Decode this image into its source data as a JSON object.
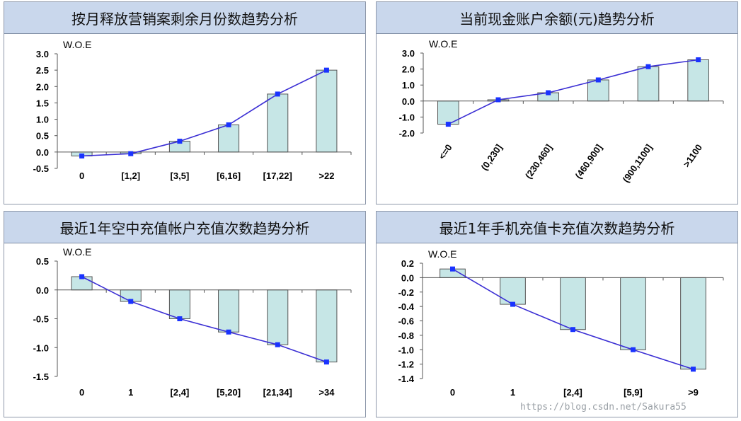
{
  "chart_data": [
    {
      "type": "bar",
      "title": "按月释放营销案剩余月份数趋势分析",
      "ylabel": "W.O.E",
      "categories": [
        "0",
        "[1,2]",
        "[3,5]",
        "[6,16]",
        "[17,22]",
        ">22"
      ],
      "values": [
        -0.12,
        -0.05,
        0.33,
        0.83,
        1.77,
        2.5
      ],
      "ylim": [
        -0.5,
        3.0
      ],
      "yticks": [
        "3.0",
        "2.5",
        "2.0",
        "1.5",
        "1.0",
        "0.5",
        "0.0",
        "-0.5"
      ],
      "ytick_values": [
        3.0,
        2.5,
        2.0,
        1.5,
        1.0,
        0.5,
        0.0,
        -0.5
      ],
      "rotated_labels": false
    },
    {
      "type": "bar",
      "title": "当前现金账户余额(元)趋势分析",
      "ylabel": "W.O.E",
      "categories": [
        "<=0",
        "(0,230]",
        "(230,460]",
        "(460,900]",
        "(900,1100]",
        ">1100"
      ],
      "values": [
        -1.45,
        0.08,
        0.52,
        1.32,
        2.15,
        2.58
      ],
      "ylim": [
        -2.0,
        3.0
      ],
      "yticks": [
        "3.0",
        "2.0",
        "1.0",
        "0.0",
        "-1.0",
        "-2.0"
      ],
      "ytick_values": [
        3.0,
        2.0,
        1.0,
        0.0,
        -1.0,
        -2.0
      ],
      "rotated_labels": true
    },
    {
      "type": "bar",
      "title": "最近1年空中充值帐户充值次数趋势分析",
      "ylabel": "W.O.E",
      "categories": [
        "0",
        "1",
        "[2,4]",
        "[5,20]",
        "[21,34]",
        ">34"
      ],
      "values": [
        0.23,
        -0.2,
        -0.5,
        -0.73,
        -0.95,
        -1.25
      ],
      "ylim": [
        -1.5,
        0.5
      ],
      "yticks": [
        "0.5",
        "0.0",
        "-0.5",
        "-1.0",
        "-1.5"
      ],
      "ytick_values": [
        0.5,
        0.0,
        -0.5,
        -1.0,
        -1.5
      ],
      "rotated_labels": false
    },
    {
      "type": "bar",
      "title": "最近1年手机充值卡充值次数趋势分析",
      "ylabel": "W.O.E",
      "categories": [
        "0",
        "1",
        "[2,4]",
        "[5,9]",
        ">9"
      ],
      "values": [
        0.12,
        -0.37,
        -0.72,
        -1.0,
        -1.27
      ],
      "ylim": [
        -1.4,
        0.2
      ],
      "yticks": [
        "0.2",
        "0.0",
        "-0.2",
        "-0.4",
        "-0.6",
        "-0.8",
        "-1.0",
        "-1.2",
        "-1.4"
      ],
      "ytick_values": [
        0.2,
        0.0,
        -0.2,
        -0.4,
        -0.6,
        -0.8,
        -1.0,
        -1.2,
        -1.4
      ],
      "rotated_labels": false
    }
  ],
  "watermark": "https://blog.csdn.net/Sakura55",
  "colors": {
    "bar_fill": "#c6e6e6",
    "bar_stroke": "#555555",
    "line": "#3b2fd4",
    "marker": "#1a33ff",
    "header": "#c9d7ec"
  }
}
